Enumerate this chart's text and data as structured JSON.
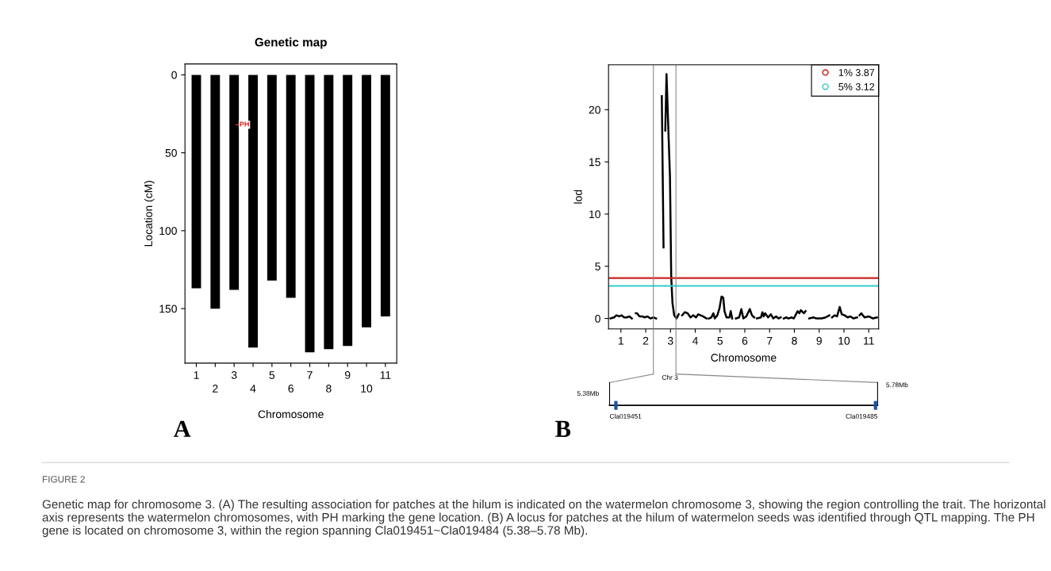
{
  "chart_data": [
    {
      "type": "bar",
      "title": "Genetic map",
      "xlabel": "Chromosome",
      "ylabel": "Location (cM)",
      "categories": [
        "1",
        "2",
        "3",
        "4",
        "5",
        "6",
        "7",
        "8",
        "9",
        "10",
        "11"
      ],
      "values": [
        137,
        150,
        138,
        175,
        132,
        143,
        178,
        176,
        174,
        162,
        155
      ],
      "color": "#000000",
      "ylim": [
        185,
        -7
      ],
      "yticks": [
        0,
        50,
        100,
        150
      ],
      "grid": false,
      "legend": false,
      "annotations": [
        "PH",
        "A"
      ]
    },
    {
      "type": "line",
      "xlabel": "Chromosome",
      "ylabel": "lod",
      "xlim": [
        0.5,
        11.4
      ],
      "xticks": [
        1,
        2,
        3,
        4,
        5,
        6,
        7,
        8,
        9,
        10,
        11
      ],
      "ylim": [
        -1,
        24.3
      ],
      "yticks": [
        0,
        5,
        10,
        15,
        20
      ],
      "grid": false,
      "legend": "top right",
      "marker": "none",
      "line_style": "solid",
      "series": [
        {
          "color": "#000000",
          "x": [
            0.58,
            0.72,
            0.82,
            0.93,
            1.03,
            1.13,
            1.24,
            1.34,
            1.44,
            null,
            1.6,
            1.65,
            1.75,
            1.86,
            1.96,
            2.07,
            2.19,
            2.31,
            2.42,
            null,
            2.65,
            2.72,
            null,
            2.79,
            2.84,
            2.93,
            2.98,
            3.03,
            3.08,
            3.15,
            3.24,
            3.33,
            null,
            3.47,
            3.58,
            3.69,
            3.81,
            3.92,
            4.03,
            4.12,
            4.22,
            4.31,
            4.46,
            null,
            4.55,
            4.65,
            4.73,
            4.79,
            4.89,
            4.98,
            5.06,
            5.13,
            5.18,
            5.26,
            5.38,
            5.43,
            5.49,
            null,
            5.64,
            5.77,
            5.86,
            5.94,
            6.06,
            6.2,
            6.29,
            6.38,
            null,
            6.49,
            6.65,
            6.71,
            6.76,
            6.82,
            6.94,
            7.05,
            7.15,
            7.26,
            7.36,
            7.45,
            null,
            7.57,
            7.67,
            7.77,
            7.88,
            7.98,
            8.13,
            8.2,
            8.26,
            8.38,
            8.45,
            null,
            8.6,
            8.77,
            8.89,
            9.1,
            9.26,
            9.41,
            null,
            9.52,
            9.62,
            9.72,
            9.83,
            9.91,
            10.03,
            10.15,
            10.26,
            10.38,
            10.53,
            null,
            10.63,
            10.7,
            10.83,
            11.0,
            11.17,
            11.33
          ],
          "values": [
            0,
            0.1,
            0.3,
            0.2,
            0.3,
            0.1,
            0.1,
            0.2,
            0,
            null,
            0.5,
            0.5,
            0.2,
            0.2,
            0.1,
            0.2,
            0,
            0.1,
            0,
            null,
            21.3,
            6.8,
            null,
            18,
            23.4,
            17,
            13.5,
            4,
            1.5,
            0.3,
            0,
            0.4,
            null,
            0.3,
            0.6,
            0.5,
            0.1,
            0.3,
            0.1,
            0.4,
            0.3,
            0.2,
            0,
            null,
            0,
            0.1,
            0.5,
            0,
            0.3,
            1.0,
            2.1,
            2.0,
            0.7,
            0.1,
            0.1,
            0.7,
            0,
            null,
            0,
            0.1,
            0.9,
            0,
            0.2,
            0.9,
            0.3,
            0.1,
            null,
            0,
            0.1,
            0.6,
            0.2,
            0.5,
            0.1,
            0.4,
            0,
            0.2,
            0,
            0.1,
            null,
            0,
            0.1,
            0,
            0.1,
            0,
            0.7,
            0.5,
            0.8,
            0.5,
            0.7,
            null,
            0,
            0.1,
            0,
            0,
            0.1,
            0.3,
            null,
            0.1,
            0.3,
            0.2,
            1.1,
            0.4,
            0.3,
            0.1,
            0.2,
            0,
            0.1,
            null,
            0.3,
            0.5,
            0.1,
            0.2,
            0,
            0.1
          ]
        }
      ],
      "ref_lines": [
        {
          "axis": "y",
          "value": 3.87,
          "label": "1% 3.87",
          "color": "#cc2222"
        },
        {
          "axis": "y",
          "value": 3.12,
          "label": "5% 3.12",
          "color": "#33cccc"
        },
        {
          "axis": "x",
          "value": 2.31,
          "color": "#888888"
        },
        {
          "axis": "x",
          "value": 3.22,
          "color": "#888888"
        }
      ],
      "annotations": [
        "B",
        "Chr 3",
        "5.38Mb",
        "5.78Mb",
        "Cla019451",
        "Cla019485",
        "FIGURE 2",
        "Genetic map for chromosome 3. (A) The resulting association for patches at the hilum is indicated on the watermelon chromosome 3, showing the region controlling the trait. The horizontal axis represents the watermelon chromosomes, with PH marking the gene location. (B) A locus for patches at the hilum of watermelon seeds was identified through QTL mapping. The PH gene is located on chromosome 3, within the region spanning Cla019451~Cla019484 (5.38–5.78 Mb)."
      ]
    }
  ]
}
